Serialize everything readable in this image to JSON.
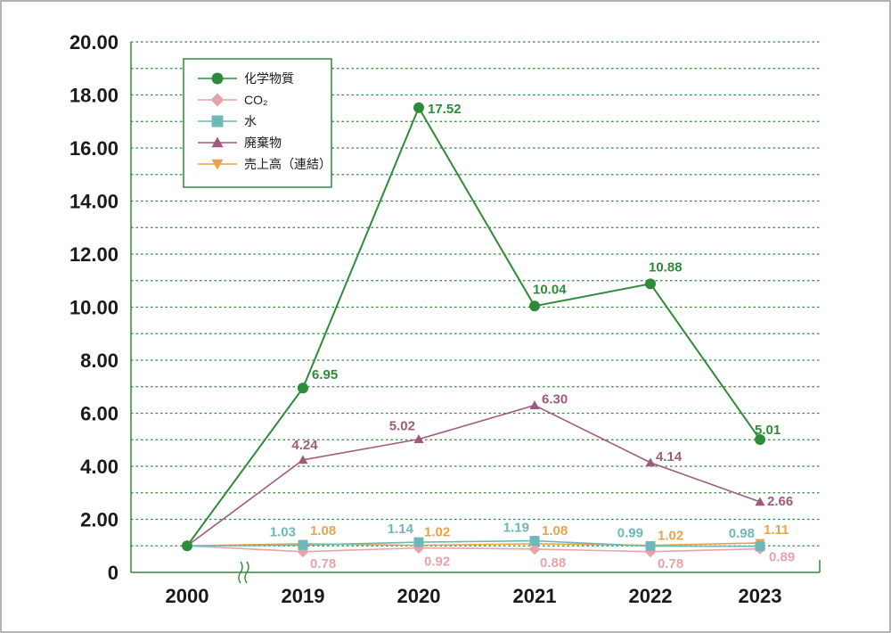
{
  "chart_data": {
    "type": "line",
    "categories": [
      "2000",
      "2019",
      "2020",
      "2021",
      "2022",
      "2023"
    ],
    "y_ticks": [
      "0",
      "2.00",
      "4.00",
      "6.00",
      "8.00",
      "10.00",
      "12.00",
      "14.00",
      "16.00",
      "18.00",
      "20.00"
    ],
    "ylim": [
      0,
      20
    ],
    "axis_break": "≈",
    "grid": "horizontal dotted",
    "legend_position": "top-left",
    "series": [
      {
        "name": "化学物質",
        "color": "#2e8b3a",
        "marker": "circle",
        "values": [
          1.0,
          6.95,
          17.52,
          10.04,
          10.88,
          5.01
        ],
        "labels": [
          "",
          "6.95",
          "17.52",
          "10.04",
          "10.88",
          "5.01"
        ]
      },
      {
        "name": "CO₂",
        "color": "#e8a3aa",
        "marker": "diamond",
        "values": [
          1.0,
          0.78,
          0.92,
          0.88,
          0.78,
          0.89
        ],
        "labels": [
          "",
          "0.78",
          "0.92",
          "0.88",
          "0.78",
          "0.89"
        ]
      },
      {
        "name": "水",
        "color": "#6fb8b8",
        "marker": "square",
        "values": [
          1.0,
          1.03,
          1.14,
          1.19,
          0.99,
          0.98
        ],
        "labels": [
          "",
          "1.03",
          "1.14",
          "1.19",
          "0.99",
          "0.98"
        ]
      },
      {
        "name": "廃棄物",
        "color": "#a05a7c",
        "marker": "triangle-up",
        "values": [
          1.0,
          4.24,
          5.02,
          6.3,
          4.14,
          2.66
        ],
        "labels": [
          "",
          "4.24",
          "5.02",
          "6.30",
          "4.14",
          "2.66"
        ]
      },
      {
        "name": "売上高（連結）",
        "color": "#e8a24a",
        "marker": "triangle-down",
        "values": [
          1.0,
          1.08,
          1.02,
          1.08,
          1.02,
          1.11
        ],
        "labels": [
          "",
          "1.08",
          "1.02",
          "1.08",
          "1.02",
          "1.11"
        ]
      }
    ],
    "colors": {
      "frame": "#2e8b3a",
      "grid": "#2e8b3a",
      "axis": "#2e8b3a"
    }
  }
}
